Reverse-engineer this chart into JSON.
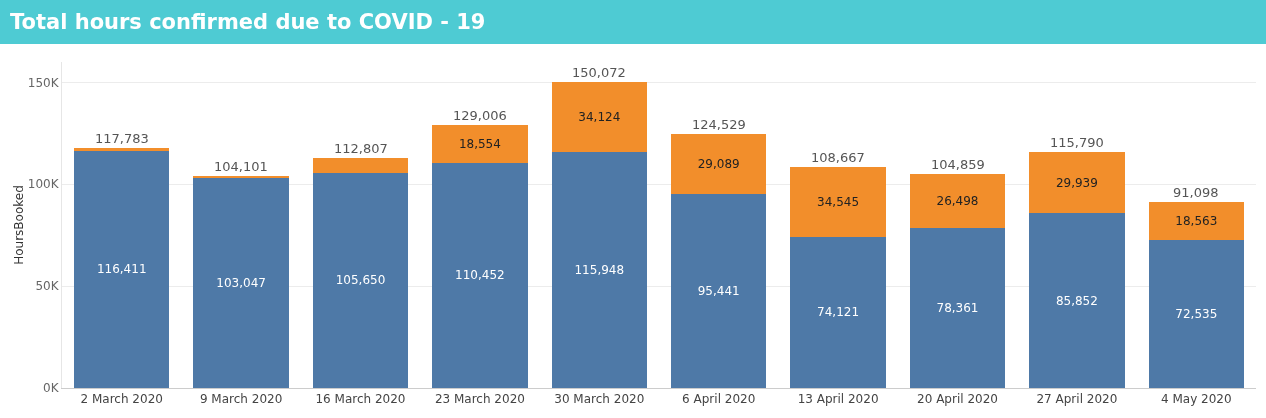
{
  "chart_data": {
    "type": "bar",
    "title": "Total hours confirmed due to COVID - 19",
    "ylabel": "HoursBooked",
    "categories": [
      "2 March 2020",
      "9 March 2020",
      "16 March 2020",
      "23 March 2020",
      "30 March 2020",
      "6 April 2020",
      "13 April 2020",
      "20 April 2020",
      "27 April 2020",
      "4 May 2020"
    ],
    "stacked": true,
    "series": [
      {
        "color": "#4e79a7",
        "values": [
          116411,
          103047,
          105650,
          110452,
          115948,
          95441,
          74121,
          78361,
          85852,
          72535
        ],
        "value_labels": [
          "116,411",
          "103,047",
          "105,650",
          "110,452",
          "115,948",
          "95,441",
          "74,121",
          "78,361",
          "85,852",
          "72,535"
        ]
      },
      {
        "color": "#f28e2b",
        "values": [
          1372,
          1054,
          7157,
          18554,
          34124,
          29089,
          34545,
          26498,
          29939,
          18563
        ],
        "value_labels": [
          null,
          null,
          null,
          "18,554",
          "34,124",
          "29,089",
          "34,545",
          "26,498",
          "29,939",
          "18,563"
        ]
      }
    ],
    "totals": [
      "117,783",
      "104,101",
      "112,807",
      "129,006",
      "150,072",
      "124,529",
      "108,667",
      "104,859",
      "115,790",
      "91,098"
    ],
    "ylim": [
      0,
      160000
    ],
    "yticks": [
      {
        "value": 0,
        "label": "0K"
      },
      {
        "value": 50000,
        "label": "50K"
      },
      {
        "value": 100000,
        "label": "100K"
      },
      {
        "value": 150000,
        "label": "150K"
      }
    ],
    "grid": "y"
  }
}
